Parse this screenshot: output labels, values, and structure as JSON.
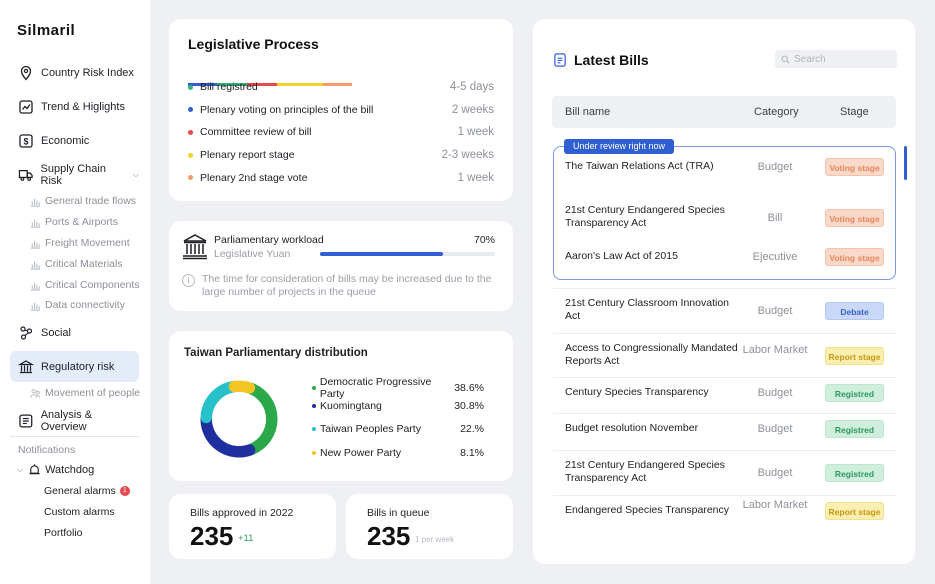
{
  "app": {
    "logo": "Silmaril"
  },
  "sidebar": {
    "items": [
      {
        "label": "Country Risk Index",
        "icon": "location-icon"
      },
      {
        "label": "Trend & Higlights",
        "icon": "trend-icon"
      },
      {
        "label": "Economic",
        "icon": "dollar-icon"
      },
      {
        "label": "Supply Chain Risk",
        "icon": "truck-icon"
      }
    ],
    "supply_sub": [
      "General trade flows",
      "Ports & Airports",
      "Freight Movement",
      "Critical Materials",
      "Critical Components",
      "Data connectivity"
    ],
    "social": "Social",
    "regulatory": "Regulatory risk",
    "movement": "Movement of people",
    "analysis": "Analysis & Overview",
    "notifications": "Notifications",
    "watchdog": "Watchdog",
    "general_alarms": "General alarms",
    "general_alarms_count": "1",
    "custom_alarms": "Custom alarms",
    "portfolio": "Portfolio"
  },
  "legislative": {
    "title": "Legislative Process",
    "bar_colors": [
      "#2f5fd0",
      "#36b37e",
      "#e5484d",
      "#f0d22a",
      "#f39a6b"
    ],
    "steps": [
      {
        "label": "Bill registred",
        "duration": "4-5 days",
        "color": "#36b37e"
      },
      {
        "label": "Plenary voting on principles of the bill",
        "duration": "2 weeks",
        "color": "#2f5fd0"
      },
      {
        "label": "Committee review of bill",
        "duration": "1 week",
        "color": "#e5484d"
      },
      {
        "label": "Plenary report stage",
        "duration": "2-3 weeks",
        "color": "#f0d22a"
      },
      {
        "label": "Plenary 2nd stage vote",
        "duration": "1 week",
        "color": "#f39a6b"
      }
    ]
  },
  "workload": {
    "title": "Parliamentary workload",
    "subtitle": "Legislative Yuan",
    "percent_label": "70%",
    "percent": 70,
    "note": "The time for consideration of bills may be increased due to the large number of projects in the queue"
  },
  "distribution": {
    "title": "Taiwan Parliamentary distribution",
    "parties": [
      {
        "name": "Democratic Progressive Party",
        "pct_label": "38.6%",
        "value": 38.6,
        "color": "#2aa84a"
      },
      {
        "name": "Kuomingtang",
        "pct_label": "30.8%",
        "value": 30.8,
        "color": "#1f2fa0"
      },
      {
        "name": "Taiwan Peoples Party",
        "pct_label": "22.%",
        "value": 22.0,
        "color": "#27c1c9"
      },
      {
        "name": "New Power Party",
        "pct_label": "8.1%",
        "value": 8.1,
        "color": "#f3c623"
      }
    ]
  },
  "stats": {
    "approved_label": "Bills approved in 2022",
    "approved_value": "235",
    "approved_delta": "+11",
    "queue_label": "Bills in queue",
    "queue_value": "235",
    "queue_delta": "1 per week"
  },
  "bills": {
    "title": "Latest Bills",
    "search_placeholder": "Search",
    "col_name": "Bill name",
    "col_category": "Category",
    "col_stage": "Stage",
    "review_tag": "Under review right now",
    "rows": [
      {
        "name": "The Taiwan Relations Act (TRA)",
        "category": "Budget",
        "stage": "Voting stage",
        "cls": "st-voting"
      },
      {
        "name": "21st Century Endangered Species Transparency Act",
        "category": "Bill",
        "stage": "Voting stage",
        "cls": "st-voting"
      },
      {
        "name": "Aaron's Law Act of 2015",
        "category": "Ejecutive",
        "stage": "Voting stage",
        "cls": "st-voting"
      },
      {
        "name": "21st Century Classroom Innovation Act",
        "category": "Budget",
        "stage": "Debate",
        "cls": "st-debate"
      },
      {
        "name": "Access to Congressionally Mandated Reports Act",
        "category": "Labor Market",
        "stage": "Report stage",
        "cls": "st-report"
      },
      {
        "name": "Century Species Transparency",
        "category": "Budget",
        "stage": "Registred",
        "cls": "st-reg"
      },
      {
        "name": "Budget resolution November",
        "category": "Budget",
        "stage": "Registred",
        "cls": "st-reg"
      },
      {
        "name": "21st Century Endangered Species Transparency Act",
        "category": "Budget",
        "stage": "Registred",
        "cls": "st-reg"
      },
      {
        "name": "Endangered Species Transparency",
        "category": "Labor Market",
        "stage": "Report stage",
        "cls": "st-report"
      }
    ]
  }
}
